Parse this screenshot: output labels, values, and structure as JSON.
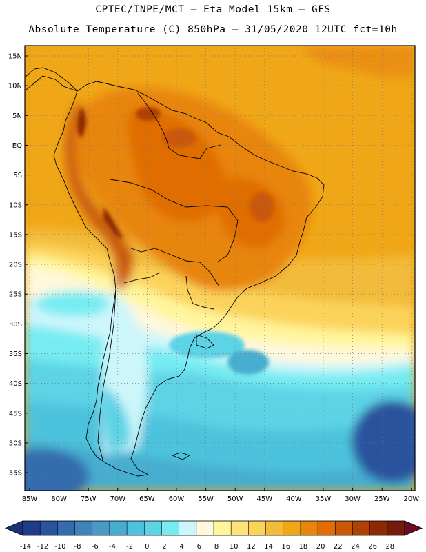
{
  "header": {
    "line1": "CPTEC/INPE/MCT —  Eta Model 15km — GFS",
    "line2": "Absolute Temperature (C) 850hPa — 31/05/2020 12UTC fct=10h"
  },
  "map": {
    "lat_labels": [
      "15N",
      "10N",
      "5N",
      "EQ",
      "5S",
      "10S",
      "15S",
      "20S",
      "25S",
      "30S",
      "35S",
      "40S",
      "45S",
      "50S",
      "55S"
    ],
    "lon_labels": [
      "85W",
      "80W",
      "75W",
      "70W",
      "65W",
      "60W",
      "55W",
      "50W",
      "45W",
      "40W",
      "35W",
      "30W",
      "25W",
      "20W"
    ]
  },
  "colorbar": {
    "tick_labels": [
      "-14",
      "-12",
      "-10",
      "-8",
      "-6",
      "-4",
      "-2",
      "0",
      "2",
      "4",
      "6",
      "8",
      "10",
      "12",
      "14",
      "16",
      "18",
      "20",
      "22",
      "24",
      "26",
      "28"
    ],
    "colors": [
      "#1f3c8c",
      "#2a539e",
      "#356cad",
      "#3f83ba",
      "#4a9ac6",
      "#46aed0",
      "#4ec2dc",
      "#5dd3e6",
      "#76ecf2",
      "#cdf6fb",
      "#fff8dc",
      "#fff59c",
      "#fee37a",
      "#fcd35a",
      "#f3bb3a",
      "#f0a717",
      "#e8850c",
      "#e06d06",
      "#c95808",
      "#b04106",
      "#8f2805",
      "#731c0c"
    ],
    "under_color": "#1a3078",
    "over_color": "#6a0d22"
  }
}
